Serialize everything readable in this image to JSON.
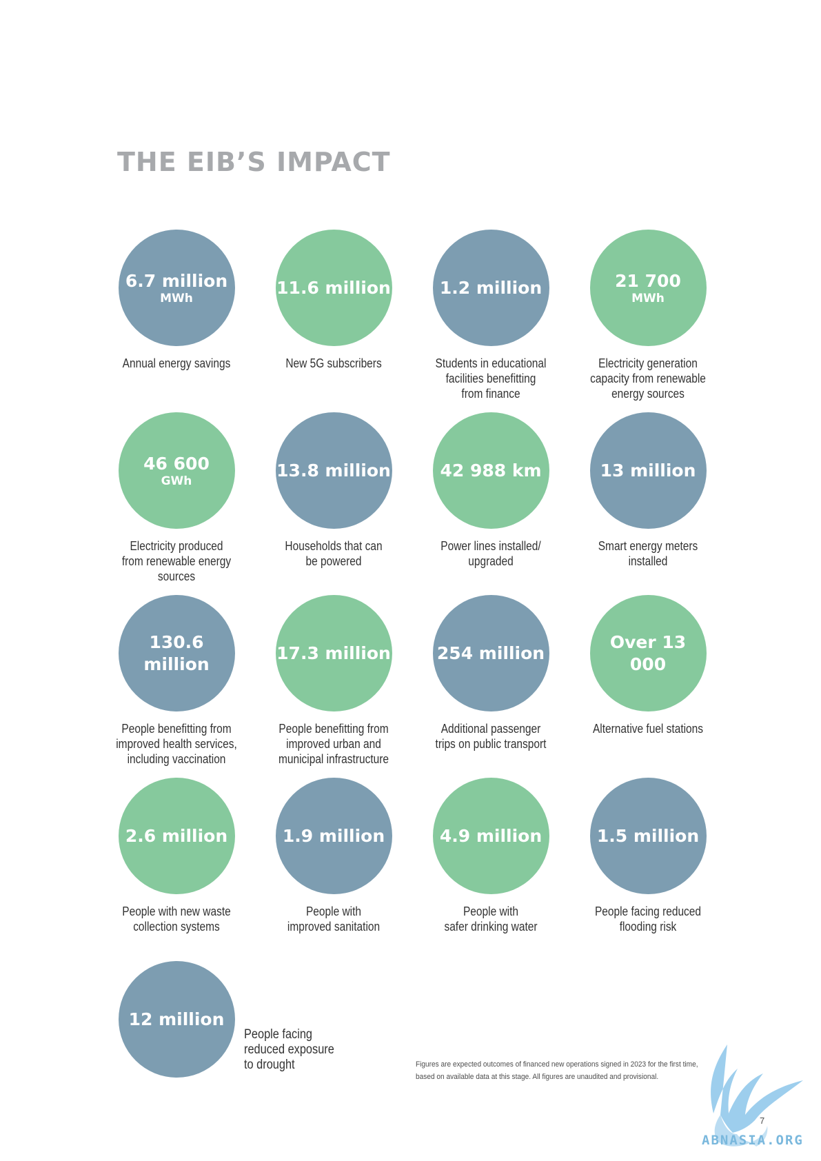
{
  "page": {
    "title": "THE EIB’S IMPACT",
    "page_number": "7",
    "footnote": "Figures are expected outcomes of financed new operations signed in 2023 for the first time, based on available data at this stage. All figures are unaudited and provisional.",
    "watermark": "ABNASIA.ORG"
  },
  "colors": {
    "blue": "#7d9db1",
    "green": "#86c99d",
    "title_gray": "#a7a9ac"
  },
  "stats": [
    {
      "value": "6.7 million",
      "unit": "MWh",
      "caption": "Annual energy savings",
      "color": "blue"
    },
    {
      "value": "11.6 million",
      "unit": "",
      "caption": "New 5G subscribers",
      "color": "green"
    },
    {
      "value": "1.2 million",
      "unit": "",
      "caption": "Students in educational\nfacilities benefitting\nfrom finance",
      "color": "blue"
    },
    {
      "value": "21 700",
      "unit": "MWh",
      "caption": "Electricity generation\ncapacity from renewable\nenergy sources",
      "color": "green"
    },
    {
      "value": "46 600",
      "unit": "GWh",
      "caption": "Electricity produced\nfrom renewable energy\nsources",
      "color": "green"
    },
    {
      "value": "13.8 million",
      "unit": "",
      "caption": "Households that can\nbe powered",
      "color": "blue"
    },
    {
      "value": "42 988 km",
      "unit": "",
      "caption": "Power lines installed/\nupgraded",
      "color": "green"
    },
    {
      "value": "13 million",
      "unit": "",
      "caption": "Smart energy meters\ninstalled",
      "color": "blue"
    },
    {
      "value": "130.6 million",
      "unit": "",
      "caption": "People benefitting from\nimproved health services,\nincluding vaccination",
      "color": "blue"
    },
    {
      "value": "17.3 million",
      "unit": "",
      "caption": "People benefitting from\nimproved urban and\nmunicipal infrastructure",
      "color": "green"
    },
    {
      "value": "254 million",
      "unit": "",
      "caption": "Additional passenger\ntrips on public transport",
      "color": "blue"
    },
    {
      "value": "Over 13 000",
      "unit": "",
      "caption": "Alternative fuel stations",
      "color": "green"
    },
    {
      "value": "2.6 million",
      "unit": "",
      "caption": "People with new waste\ncollection systems",
      "color": "green"
    },
    {
      "value": "1.9 million",
      "unit": "",
      "caption": "People with\nimproved sanitation",
      "color": "blue"
    },
    {
      "value": "4.9 million",
      "unit": "",
      "caption": "People with\nsafer drinking water",
      "color": "green"
    },
    {
      "value": "1.5 million",
      "unit": "",
      "caption": "People facing reduced\nflooding risk",
      "color": "blue"
    },
    {
      "value": "12 million",
      "unit": "",
      "caption": "People facing\nreduced exposure\nto drought",
      "color": "blue"
    }
  ]
}
